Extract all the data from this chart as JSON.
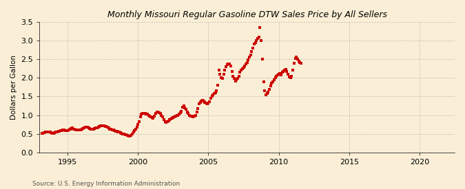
{
  "title": "Monthly Missouri Regular Gasoline DTW Sales Price by All Sellers",
  "ylabel": "Dollars per Gallon",
  "source": "Source: U.S. Energy Information Administration",
  "xlim": [
    1993.0,
    2022.5
  ],
  "ylim": [
    0.0,
    3.5
  ],
  "yticks": [
    0.0,
    0.5,
    1.0,
    1.5,
    2.0,
    2.5,
    3.0,
    3.5
  ],
  "xticks": [
    1995,
    2000,
    2005,
    2010,
    2015,
    2020
  ],
  "background_color": "#faefd6",
  "marker_color": "#cc0000",
  "grid_color": "#b0b0b0",
  "data": [
    [
      1993.17,
      0.51
    ],
    [
      1993.25,
      0.52
    ],
    [
      1993.33,
      0.53
    ],
    [
      1993.42,
      0.54
    ],
    [
      1993.5,
      0.55
    ],
    [
      1993.58,
      0.54
    ],
    [
      1993.67,
      0.54
    ],
    [
      1993.75,
      0.54
    ],
    [
      1993.83,
      0.53
    ],
    [
      1993.92,
      0.52
    ],
    [
      1994.0,
      0.52
    ],
    [
      1994.08,
      0.53
    ],
    [
      1994.17,
      0.54
    ],
    [
      1994.25,
      0.55
    ],
    [
      1994.33,
      0.56
    ],
    [
      1994.42,
      0.57
    ],
    [
      1994.5,
      0.58
    ],
    [
      1994.58,
      0.59
    ],
    [
      1994.67,
      0.6
    ],
    [
      1994.75,
      0.6
    ],
    [
      1994.83,
      0.59
    ],
    [
      1994.92,
      0.58
    ],
    [
      1995.0,
      0.58
    ],
    [
      1995.08,
      0.6
    ],
    [
      1995.17,
      0.62
    ],
    [
      1995.25,
      0.64
    ],
    [
      1995.33,
      0.65
    ],
    [
      1995.42,
      0.63
    ],
    [
      1995.5,
      0.62
    ],
    [
      1995.58,
      0.61
    ],
    [
      1995.67,
      0.6
    ],
    [
      1995.75,
      0.6
    ],
    [
      1995.83,
      0.6
    ],
    [
      1995.92,
      0.61
    ],
    [
      1996.0,
      0.62
    ],
    [
      1996.08,
      0.64
    ],
    [
      1996.17,
      0.66
    ],
    [
      1996.25,
      0.67
    ],
    [
      1996.33,
      0.68
    ],
    [
      1996.42,
      0.67
    ],
    [
      1996.5,
      0.65
    ],
    [
      1996.58,
      0.64
    ],
    [
      1996.67,
      0.63
    ],
    [
      1996.75,
      0.63
    ],
    [
      1996.83,
      0.63
    ],
    [
      1996.92,
      0.64
    ],
    [
      1997.0,
      0.65
    ],
    [
      1997.08,
      0.66
    ],
    [
      1997.17,
      0.68
    ],
    [
      1997.25,
      0.7
    ],
    [
      1997.33,
      0.72
    ],
    [
      1997.42,
      0.72
    ],
    [
      1997.5,
      0.72
    ],
    [
      1997.58,
      0.71
    ],
    [
      1997.67,
      0.7
    ],
    [
      1997.75,
      0.69
    ],
    [
      1997.83,
      0.67
    ],
    [
      1997.92,
      0.65
    ],
    [
      1998.0,
      0.63
    ],
    [
      1998.08,
      0.62
    ],
    [
      1998.17,
      0.61
    ],
    [
      1998.25,
      0.6
    ],
    [
      1998.33,
      0.59
    ],
    [
      1998.42,
      0.57
    ],
    [
      1998.5,
      0.56
    ],
    [
      1998.58,
      0.55
    ],
    [
      1998.67,
      0.54
    ],
    [
      1998.75,
      0.53
    ],
    [
      1998.83,
      0.52
    ],
    [
      1998.92,
      0.5
    ],
    [
      1999.0,
      0.49
    ],
    [
      1999.08,
      0.48
    ],
    [
      1999.17,
      0.47
    ],
    [
      1999.25,
      0.46
    ],
    [
      1999.33,
      0.44
    ],
    [
      1999.42,
      0.43
    ],
    [
      1999.5,
      0.46
    ],
    [
      1999.58,
      0.5
    ],
    [
      1999.67,
      0.54
    ],
    [
      1999.75,
      0.58
    ],
    [
      1999.83,
      0.62
    ],
    [
      1999.92,
      0.68
    ],
    [
      2000.0,
      0.75
    ],
    [
      2000.08,
      0.82
    ],
    [
      2000.17,
      0.95
    ],
    [
      2000.25,
      1.02
    ],
    [
      2000.33,
      1.04
    ],
    [
      2000.42,
      1.05
    ],
    [
      2000.5,
      1.04
    ],
    [
      2000.58,
      1.03
    ],
    [
      2000.67,
      1.02
    ],
    [
      2000.75,
      1.0
    ],
    [
      2000.83,
      0.98
    ],
    [
      2000.92,
      0.95
    ],
    [
      2001.0,
      0.93
    ],
    [
      2001.08,
      0.92
    ],
    [
      2001.17,
      0.98
    ],
    [
      2001.25,
      1.05
    ],
    [
      2001.33,
      1.08
    ],
    [
      2001.42,
      1.08
    ],
    [
      2001.5,
      1.06
    ],
    [
      2001.58,
      1.04
    ],
    [
      2001.67,
      1.0
    ],
    [
      2001.75,
      0.95
    ],
    [
      2001.83,
      0.88
    ],
    [
      2001.92,
      0.82
    ],
    [
      2002.0,
      0.8
    ],
    [
      2002.08,
      0.82
    ],
    [
      2002.17,
      0.85
    ],
    [
      2002.25,
      0.88
    ],
    [
      2002.33,
      0.9
    ],
    [
      2002.42,
      0.92
    ],
    [
      2002.5,
      0.94
    ],
    [
      2002.58,
      0.95
    ],
    [
      2002.67,
      0.97
    ],
    [
      2002.75,
      0.99
    ],
    [
      2002.83,
      1.0
    ],
    [
      2002.92,
      1.02
    ],
    [
      2003.0,
      1.06
    ],
    [
      2003.08,
      1.1
    ],
    [
      2003.17,
      1.22
    ],
    [
      2003.25,
      1.25
    ],
    [
      2003.33,
      1.2
    ],
    [
      2003.42,
      1.15
    ],
    [
      2003.5,
      1.08
    ],
    [
      2003.58,
      1.05
    ],
    [
      2003.67,
      1.0
    ],
    [
      2003.75,
      0.98
    ],
    [
      2003.83,
      0.97
    ],
    [
      2003.92,
      0.96
    ],
    [
      2004.0,
      0.98
    ],
    [
      2004.08,
      1.0
    ],
    [
      2004.17,
      1.08
    ],
    [
      2004.25,
      1.18
    ],
    [
      2004.33,
      1.3
    ],
    [
      2004.42,
      1.35
    ],
    [
      2004.5,
      1.38
    ],
    [
      2004.58,
      1.4
    ],
    [
      2004.67,
      1.38
    ],
    [
      2004.75,
      1.35
    ],
    [
      2004.83,
      1.32
    ],
    [
      2004.92,
      1.3
    ],
    [
      2005.0,
      1.32
    ],
    [
      2005.08,
      1.36
    ],
    [
      2005.17,
      1.45
    ],
    [
      2005.25,
      1.5
    ],
    [
      2005.33,
      1.55
    ],
    [
      2005.42,
      1.58
    ],
    [
      2005.5,
      1.6
    ],
    [
      2005.58,
      1.65
    ],
    [
      2005.67,
      1.8
    ],
    [
      2005.75,
      2.2
    ],
    [
      2005.83,
      2.1
    ],
    [
      2005.92,
      2.0
    ],
    [
      2006.0,
      1.98
    ],
    [
      2006.08,
      2.1
    ],
    [
      2006.17,
      2.2
    ],
    [
      2006.25,
      2.3
    ],
    [
      2006.33,
      2.35
    ],
    [
      2006.42,
      2.38
    ],
    [
      2006.5,
      2.38
    ],
    [
      2006.58,
      2.32
    ],
    [
      2006.67,
      2.18
    ],
    [
      2006.75,
      2.05
    ],
    [
      2006.83,
      1.98
    ],
    [
      2006.92,
      1.92
    ],
    [
      2007.0,
      1.95
    ],
    [
      2007.08,
      1.98
    ],
    [
      2007.17,
      2.05
    ],
    [
      2007.25,
      2.15
    ],
    [
      2007.33,
      2.2
    ],
    [
      2007.42,
      2.25
    ],
    [
      2007.5,
      2.28
    ],
    [
      2007.58,
      2.32
    ],
    [
      2007.67,
      2.38
    ],
    [
      2007.75,
      2.42
    ],
    [
      2007.83,
      2.48
    ],
    [
      2007.92,
      2.55
    ],
    [
      2008.0,
      2.62
    ],
    [
      2008.08,
      2.7
    ],
    [
      2008.17,
      2.8
    ],
    [
      2008.25,
      2.9
    ],
    [
      2008.33,
      2.95
    ],
    [
      2008.42,
      3.0
    ],
    [
      2008.5,
      3.05
    ],
    [
      2008.58,
      3.1
    ],
    [
      2008.67,
      3.35
    ],
    [
      2008.75,
      3.0
    ],
    [
      2008.83,
      2.5
    ],
    [
      2008.92,
      1.9
    ],
    [
      2009.0,
      1.65
    ],
    [
      2009.08,
      1.55
    ],
    [
      2009.17,
      1.58
    ],
    [
      2009.25,
      1.62
    ],
    [
      2009.33,
      1.7
    ],
    [
      2009.42,
      1.78
    ],
    [
      2009.5,
      1.85
    ],
    [
      2009.58,
      1.9
    ],
    [
      2009.67,
      1.95
    ],
    [
      2009.75,
      2.0
    ],
    [
      2009.83,
      2.05
    ],
    [
      2009.92,
      2.08
    ],
    [
      2010.0,
      2.1
    ],
    [
      2010.08,
      2.12
    ],
    [
      2010.17,
      2.08
    ],
    [
      2010.25,
      2.15
    ],
    [
      2010.33,
      2.18
    ],
    [
      2010.42,
      2.2
    ],
    [
      2010.5,
      2.22
    ],
    [
      2010.58,
      2.18
    ],
    [
      2010.67,
      2.1
    ],
    [
      2010.75,
      2.02
    ],
    [
      2010.83,
      2.0
    ],
    [
      2010.92,
      2.05
    ],
    [
      2011.0,
      2.2
    ],
    [
      2011.08,
      2.4
    ],
    [
      2011.17,
      2.52
    ],
    [
      2011.25,
      2.55
    ],
    [
      2011.33,
      2.5
    ],
    [
      2011.42,
      2.45
    ],
    [
      2011.5,
      2.42
    ],
    [
      2011.58,
      2.4
    ]
  ]
}
